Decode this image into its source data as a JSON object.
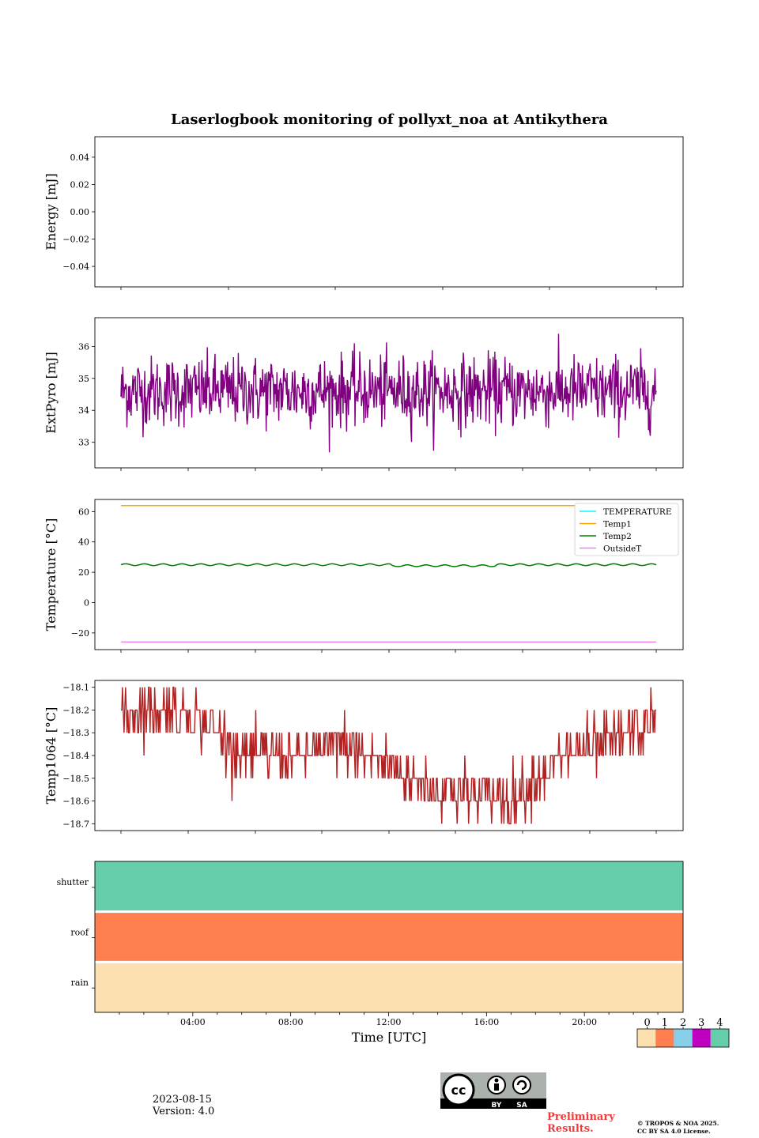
{
  "title": "Laserlogbook monitoring of pollyxt_noa at Antikythera",
  "footer": {
    "date": "2023-08-15",
    "version": "Version: 4.0",
    "preliminary": "Preliminary Results.",
    "copyright_line1": "© TROPOS & NOA 2025.",
    "copyright_line2": "CC BY SA 4.0 License.",
    "cc_by": "BY",
    "cc_sa": "SA"
  },
  "colors": {
    "extpyro": "#800080",
    "temperature": "#00ffff",
    "temp1": "#ffa500",
    "temp2": "#008000",
    "outsideT": "#ee82ee",
    "temp1064": "#b22222",
    "status0": "#fde0b0",
    "status1": "#ff7f50",
    "status2": "#87ceeb",
    "status3": "#c000c0",
    "status4": "#66cdaa"
  },
  "chart_data": [
    {
      "type": "line",
      "panel": "energy",
      "ylabel": "Energy [mJ]",
      "ylim": [
        -0.055,
        0.055
      ],
      "yticks": [
        0.04,
        0.02,
        0.0,
        -0.02,
        -0.04
      ],
      "ytick_labels": [
        "0.04",
        "0.02",
        "0.00",
        "−0.02",
        "−0.04"
      ],
      "series": []
    },
    {
      "type": "line",
      "panel": "extpyro",
      "ylabel": "ExtPyro [mJ]",
      "ylim": [
        32.2,
        36.9
      ],
      "yticks": [
        33,
        34,
        35,
        36
      ],
      "ytick_labels": [
        "33",
        "34",
        "35",
        "36"
      ],
      "x_range_hours": [
        1,
        23
      ],
      "series": [
        {
          "mean": 34.6,
          "std": 0.55,
          "min": 32.3,
          "max": 36.7,
          "n_points": 900
        }
      ]
    },
    {
      "type": "line",
      "panel": "temperature",
      "ylabel": "Temperature [°C]",
      "ylim": [
        -31,
        68
      ],
      "yticks": [
        60,
        40,
        20,
        0,
        -20
      ],
      "ytick_labels": [
        "60",
        "40",
        "20",
        "0",
        "−20"
      ],
      "legend": "top-right",
      "series": [
        {
          "name": "TEMPERATURE",
          "color_key": "temperature",
          "values": []
        },
        {
          "name": "Temp1",
          "color_key": "temp1",
          "value": 64
        },
        {
          "name": "Temp2",
          "color_key": "temp2",
          "value": 25
        },
        {
          "name": "OutsideT",
          "color_key": "outsideT",
          "value": -26
        }
      ]
    },
    {
      "type": "line",
      "panel": "temp1064",
      "ylabel": "Temp1064 [°C]",
      "ylim": [
        -18.73,
        -18.07
      ],
      "yticks": [
        -18.1,
        -18.2,
        -18.3,
        -18.4,
        -18.5,
        -18.6,
        -18.7
      ],
      "ytick_labels": [
        "−18.1",
        "−18.2",
        "−18.3",
        "−18.4",
        "−18.5",
        "−18.6",
        "−18.7"
      ],
      "series": [
        {
          "name": "Temp1064",
          "x_hours": [
            1,
            3,
            4,
            5,
            6,
            8,
            10,
            11,
            12,
            13,
            14,
            16,
            17,
            18,
            19,
            20,
            21,
            22,
            23
          ],
          "values": [
            -18.2,
            -18.2,
            -18.22,
            -18.3,
            -18.4,
            -18.4,
            -18.35,
            -18.4,
            -18.45,
            -18.5,
            -18.55,
            -18.57,
            -18.6,
            -18.5,
            -18.42,
            -18.38,
            -18.35,
            -18.3,
            -18.25
          ]
        }
      ]
    },
    {
      "type": "heatmap",
      "panel": "status",
      "rows": [
        "shutter",
        "roof",
        "rain"
      ],
      "row_values": [
        4,
        1,
        0
      ],
      "xlabel": "Time [UTC]",
      "xticks": [
        "04:00",
        "08:00",
        "12:00",
        "16:00",
        "20:00"
      ],
      "xtick_hours": [
        4,
        8,
        12,
        16,
        20
      ],
      "colorbar_ticks": [
        "0",
        "1",
        "2",
        "3",
        "4"
      ]
    }
  ]
}
